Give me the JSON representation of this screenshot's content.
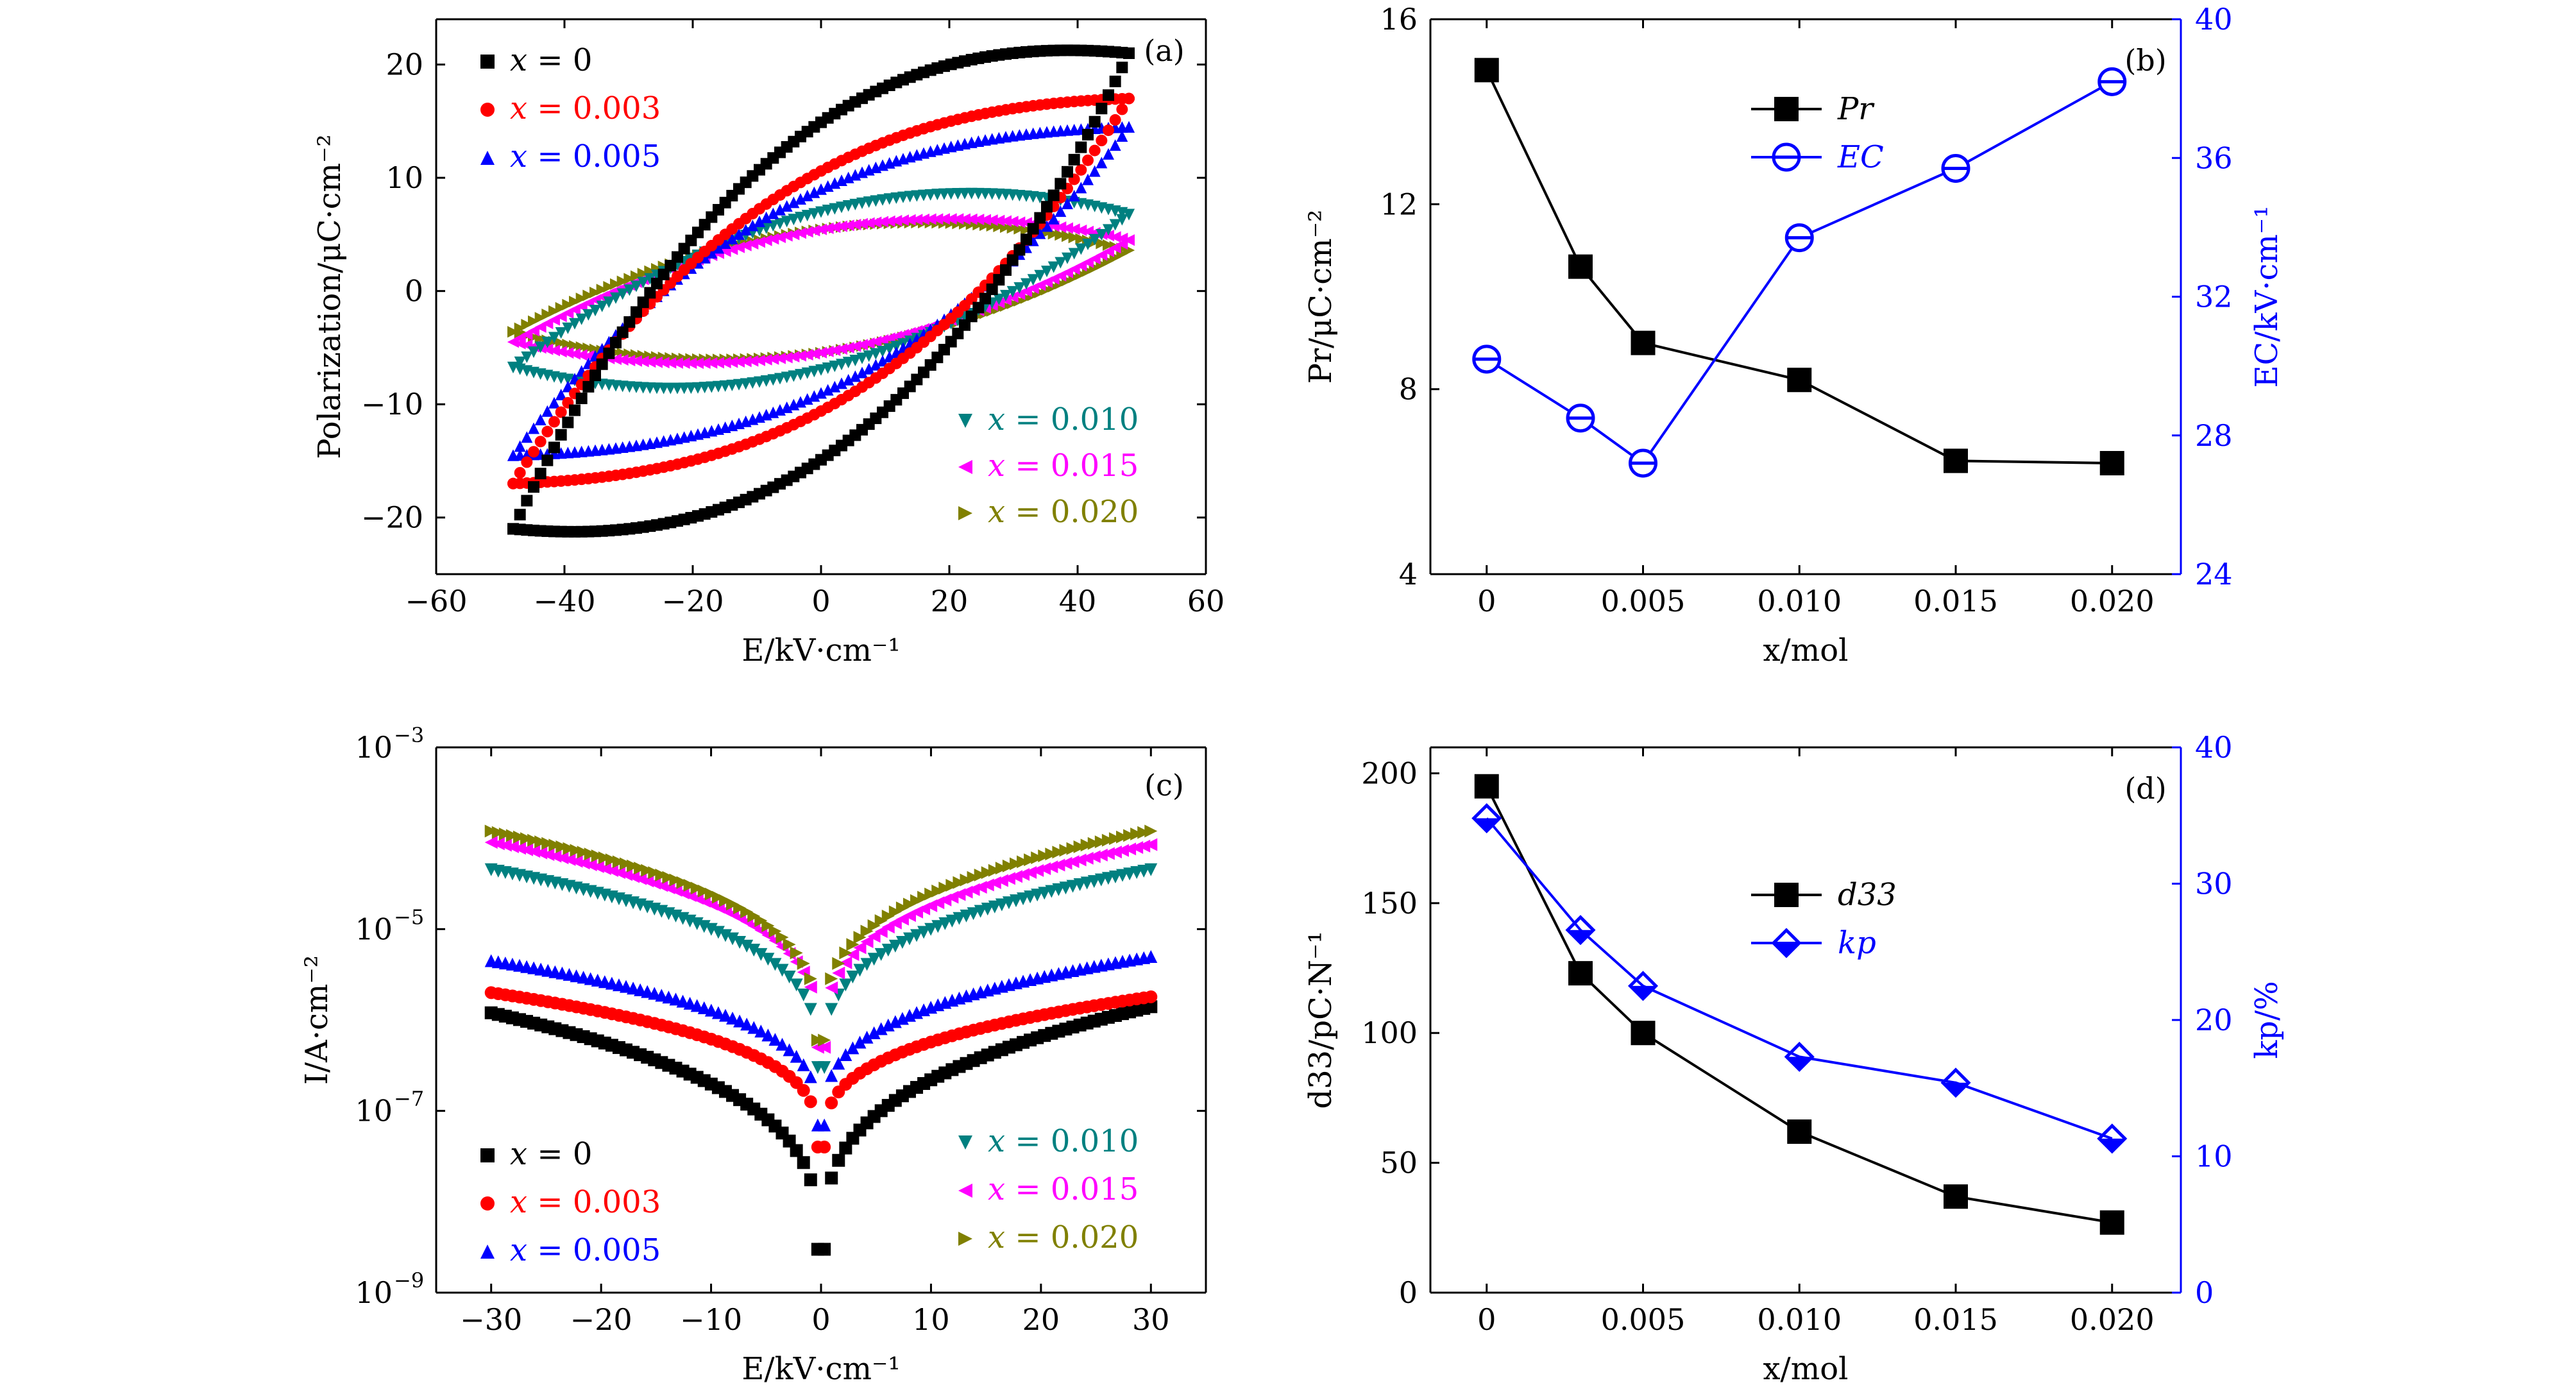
{
  "chart_data": [
    {
      "panel": "(a)",
      "type": "scatter",
      "xlabel": "E/kV·cm⁻¹",
      "ylabel": "Polarization/μC·cm⁻²",
      "xlim": [
        -60,
        60
      ],
      "ylim": [
        -25,
        24
      ],
      "xticks": [
        -60,
        -40,
        -20,
        0,
        20,
        40,
        60
      ],
      "yticks": [
        -20,
        -10,
        0,
        10,
        20
      ],
      "xtick_labels": [
        "−60",
        "−40",
        "−20",
        "0",
        "20",
        "40",
        "60"
      ],
      "ytick_labels": [
        "−20",
        "−10",
        "0",
        "10",
        "20"
      ],
      "legend_left": "top-left",
      "legend_right": "bottom-right",
      "series": [
        {
          "name": "x = 0",
          "color": "#000000",
          "marker": "square",
          "emax": 48,
          "pmax": 21,
          "pr": 14.9,
          "ec": 30.2
        },
        {
          "name": "x = 0.003",
          "color": "#ff0000",
          "marker": "circle",
          "emax": 48,
          "pmax": 17,
          "pr": 10.6,
          "ec": 28.5
        },
        {
          "name": "x = 0.005",
          "color": "#0000ff",
          "marker": "triangle-up",
          "emax": 48,
          "pmax": 14.5,
          "pr": 9.0,
          "ec": 27.2
        },
        {
          "name": "x = 0.010",
          "color": "#008080",
          "marker": "triangle-down",
          "emax": 48,
          "pmax": 7.5,
          "pr": 8.2,
          "ec": 33.7
        },
        {
          "name": "x = 0.015",
          "color": "#ff00ff",
          "marker": "triangle-left",
          "emax": 48,
          "pmax": 5,
          "pr": 6.4,
          "ec": 35.7
        },
        {
          "name": "x = 0.020",
          "color": "#808000",
          "marker": "triangle-right",
          "emax": 48,
          "pmax": 4,
          "pr": 6.4,
          "ec": 38.2
        }
      ]
    },
    {
      "panel": "(b)",
      "type": "line",
      "xlabel": "x/mol",
      "ylabel": "Pr/μC·cm⁻²",
      "ylabel_right": "EC/kV·cm⁻¹",
      "categories": [
        "0",
        "0.005",
        "0.010",
        "0.015",
        "0.020"
      ],
      "x": [
        0,
        0.003,
        0.005,
        0.01,
        0.015,
        0.02
      ],
      "xlim": [
        -0.0018,
        0.0222
      ],
      "ylim": [
        4,
        16
      ],
      "ylim_right": [
        24,
        40
      ],
      "yticks": [
        4,
        8,
        12,
        16
      ],
      "yticks_right": [
        24,
        28,
        32,
        36,
        40
      ],
      "legend": "top-center",
      "series": [
        {
          "name": "Pr",
          "axis": "left",
          "color": "#000000",
          "marker": "filled-square",
          "values": [
            14.9,
            10.65,
            9.0,
            8.2,
            6.45,
            6.4
          ]
        },
        {
          "name": "EC",
          "axis": "right",
          "color": "#0000ff",
          "marker": "half-circle",
          "values": [
            30.2,
            28.5,
            27.2,
            33.7,
            35.7,
            38.2
          ]
        }
      ]
    },
    {
      "panel": "(c)",
      "type": "scatter",
      "xlabel": "E/kV·cm⁻¹",
      "ylabel": "I/A·cm⁻²",
      "xlim": [
        -35,
        35
      ],
      "ylim": [
        1e-09,
        0.001
      ],
      "yscale": "log",
      "xticks": [
        -30,
        -20,
        -10,
        0,
        10,
        20,
        30
      ],
      "xtick_labels": [
        "−30",
        "−20",
        "−10",
        "0",
        "10",
        "20",
        "30"
      ],
      "ytick_labels": [
        "10",
        "10",
        "10",
        "10"
      ],
      "ytick_exponents": [
        "−9",
        "−7",
        "−5",
        "−3"
      ],
      "yticks": [
        -9,
        -7,
        -5,
        -3
      ],
      "legend_left": "bottom-left",
      "legend_right": "bottom-right",
      "series": [
        {
          "name": "x = 0",
          "color": "#000000",
          "marker": "square",
          "ileft": 1.2e-06,
          "iright": 1.4e-06,
          "imin": 3e-09
        },
        {
          "name": "x = 0.003",
          "color": "#ff0000",
          "marker": "circle",
          "ileft": 2e-06,
          "iright": 1.8e-06,
          "imin": 4e-08
        },
        {
          "name": "x = 0.005",
          "color": "#0000ff",
          "marker": "triangle-up",
          "ileft": 4.5e-06,
          "iright": 5e-06,
          "imin": 7e-08
        },
        {
          "name": "x = 0.010",
          "color": "#008080",
          "marker": "triangle-down",
          "ileft": 4.5e-05,
          "iright": 4.5e-05,
          "imin": 3e-07
        },
        {
          "name": "x = 0.015",
          "color": "#ff00ff",
          "marker": "triangle-left",
          "ileft": 9e-05,
          "iright": 8.5e-05,
          "imin": 5e-07
        },
        {
          "name": "x = 0.020",
          "color": "#808000",
          "marker": "triangle-right",
          "ileft": 0.00012,
          "iright": 0.00012,
          "imin": 6e-07
        }
      ]
    },
    {
      "panel": "(d)",
      "type": "line",
      "xlabel": "x/mol",
      "ylabel": "d33/pC·N⁻¹",
      "ylabel_right": "kp/%",
      "categories": [
        "0",
        "0.005",
        "0.010",
        "0.015",
        "0.020"
      ],
      "x": [
        0,
        0.003,
        0.005,
        0.01,
        0.015,
        0.02
      ],
      "xlim": [
        -0.0018,
        0.0222
      ],
      "ylim": [
        0,
        210
      ],
      "ylim_right": [
        0,
        40
      ],
      "yticks": [
        0,
        50,
        100,
        150,
        200
      ],
      "yticks_right": [
        0,
        10,
        20,
        30,
        40
      ],
      "legend": "top-center",
      "series": [
        {
          "name": "d33",
          "axis": "left",
          "color": "#000000",
          "marker": "filled-square",
          "values": [
            195,
            123,
            100,
            62,
            37,
            27
          ]
        },
        {
          "name": "kp",
          "axis": "right",
          "color": "#0000ff",
          "marker": "half-diamond",
          "values": [
            34.8,
            26.6,
            22.5,
            17.3,
            15.4,
            11.3
          ]
        }
      ]
    }
  ]
}
